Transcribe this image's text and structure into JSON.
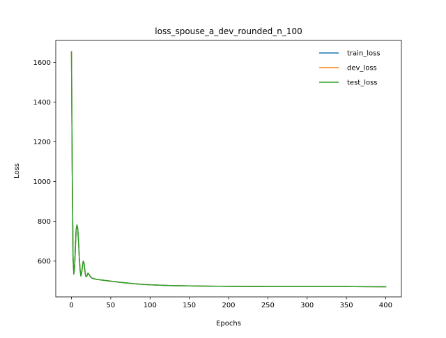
{
  "chart_data": {
    "type": "line",
    "title": "loss_spouse_a_dev_rounded_n_100",
    "xlabel": "Epochs",
    "ylabel": "Loss",
    "xlim": [
      -20,
      420
    ],
    "ylim": [
      420,
      1710
    ],
    "xticks": [
      0,
      50,
      100,
      150,
      200,
      250,
      300,
      350,
      400
    ],
    "yticks": [
      600,
      800,
      1000,
      1200,
      1400,
      1600
    ],
    "grid": false,
    "legend_position": "top-right",
    "series": [
      {
        "name": "train_loss",
        "color": "#1f77b4",
        "x": [
          0,
          1,
          2,
          3,
          4,
          5,
          6,
          7,
          8,
          9,
          10,
          11,
          12,
          13,
          14,
          15,
          16,
          17,
          18,
          19,
          20,
          21,
          22,
          24,
          26,
          28,
          30,
          32,
          34,
          36,
          38,
          40,
          42,
          44,
          46,
          48,
          50,
          55,
          60,
          70,
          80,
          90,
          100,
          110,
          125,
          150,
          175,
          200,
          250,
          300,
          350,
          400
        ],
        "y": [
          1653,
          1050,
          620,
          535,
          570,
          670,
          760,
          782,
          765,
          700,
          615,
          555,
          525,
          540,
          575,
          600,
          590,
          555,
          525,
          522,
          528,
          540,
          535,
          522,
          515,
          512,
          510,
          508,
          507,
          506,
          505,
          504,
          503,
          502,
          501,
          500,
          499,
          497,
          494,
          490,
          486,
          483,
          481,
          479,
          477,
          475,
          474,
          473,
          472,
          472,
          472,
          471
        ]
      },
      {
        "name": "dev_loss",
        "color": "#ff7f0e",
        "x": [
          0,
          1,
          2,
          3,
          4,
          5,
          6,
          7,
          8,
          9,
          10,
          11,
          12,
          13,
          14,
          15,
          16,
          17,
          18,
          19,
          20,
          21,
          22,
          24,
          26,
          28,
          30,
          32,
          34,
          36,
          38,
          40,
          42,
          44,
          46,
          48,
          50,
          55,
          60,
          70,
          80,
          90,
          100,
          110,
          125,
          150,
          175,
          200,
          250,
          300,
          350,
          400
        ],
        "y": [
          1653,
          1050,
          620,
          535,
          570,
          670,
          760,
          782,
          765,
          700,
          615,
          555,
          525,
          540,
          575,
          600,
          590,
          555,
          525,
          522,
          528,
          540,
          535,
          522,
          515,
          512,
          510,
          508,
          507,
          506,
          505,
          504,
          503,
          502,
          501,
          500,
          499,
          497,
          494,
          490,
          486,
          483,
          481,
          479,
          477,
          475,
          474,
          473,
          472,
          472,
          472,
          471
        ]
      },
      {
        "name": "test_loss",
        "color": "#2ca02c",
        "x": [
          0,
          1,
          2,
          3,
          4,
          5,
          6,
          7,
          8,
          9,
          10,
          11,
          12,
          13,
          14,
          15,
          16,
          17,
          18,
          19,
          20,
          21,
          22,
          24,
          26,
          28,
          30,
          32,
          34,
          36,
          38,
          40,
          42,
          44,
          46,
          48,
          50,
          55,
          60,
          70,
          80,
          90,
          100,
          110,
          125,
          150,
          175,
          200,
          250,
          300,
          350,
          400
        ],
        "y": [
          1653,
          1050,
          620,
          535,
          570,
          670,
          760,
          782,
          765,
          700,
          615,
          555,
          525,
          540,
          575,
          600,
          590,
          555,
          525,
          522,
          528,
          540,
          535,
          522,
          515,
          512,
          510,
          508,
          507,
          506,
          505,
          504,
          503,
          502,
          501,
          500,
          499,
          497,
          494,
          490,
          486,
          483,
          481,
          479,
          477,
          475,
          474,
          473,
          472,
          472,
          472,
          471
        ]
      }
    ]
  }
}
